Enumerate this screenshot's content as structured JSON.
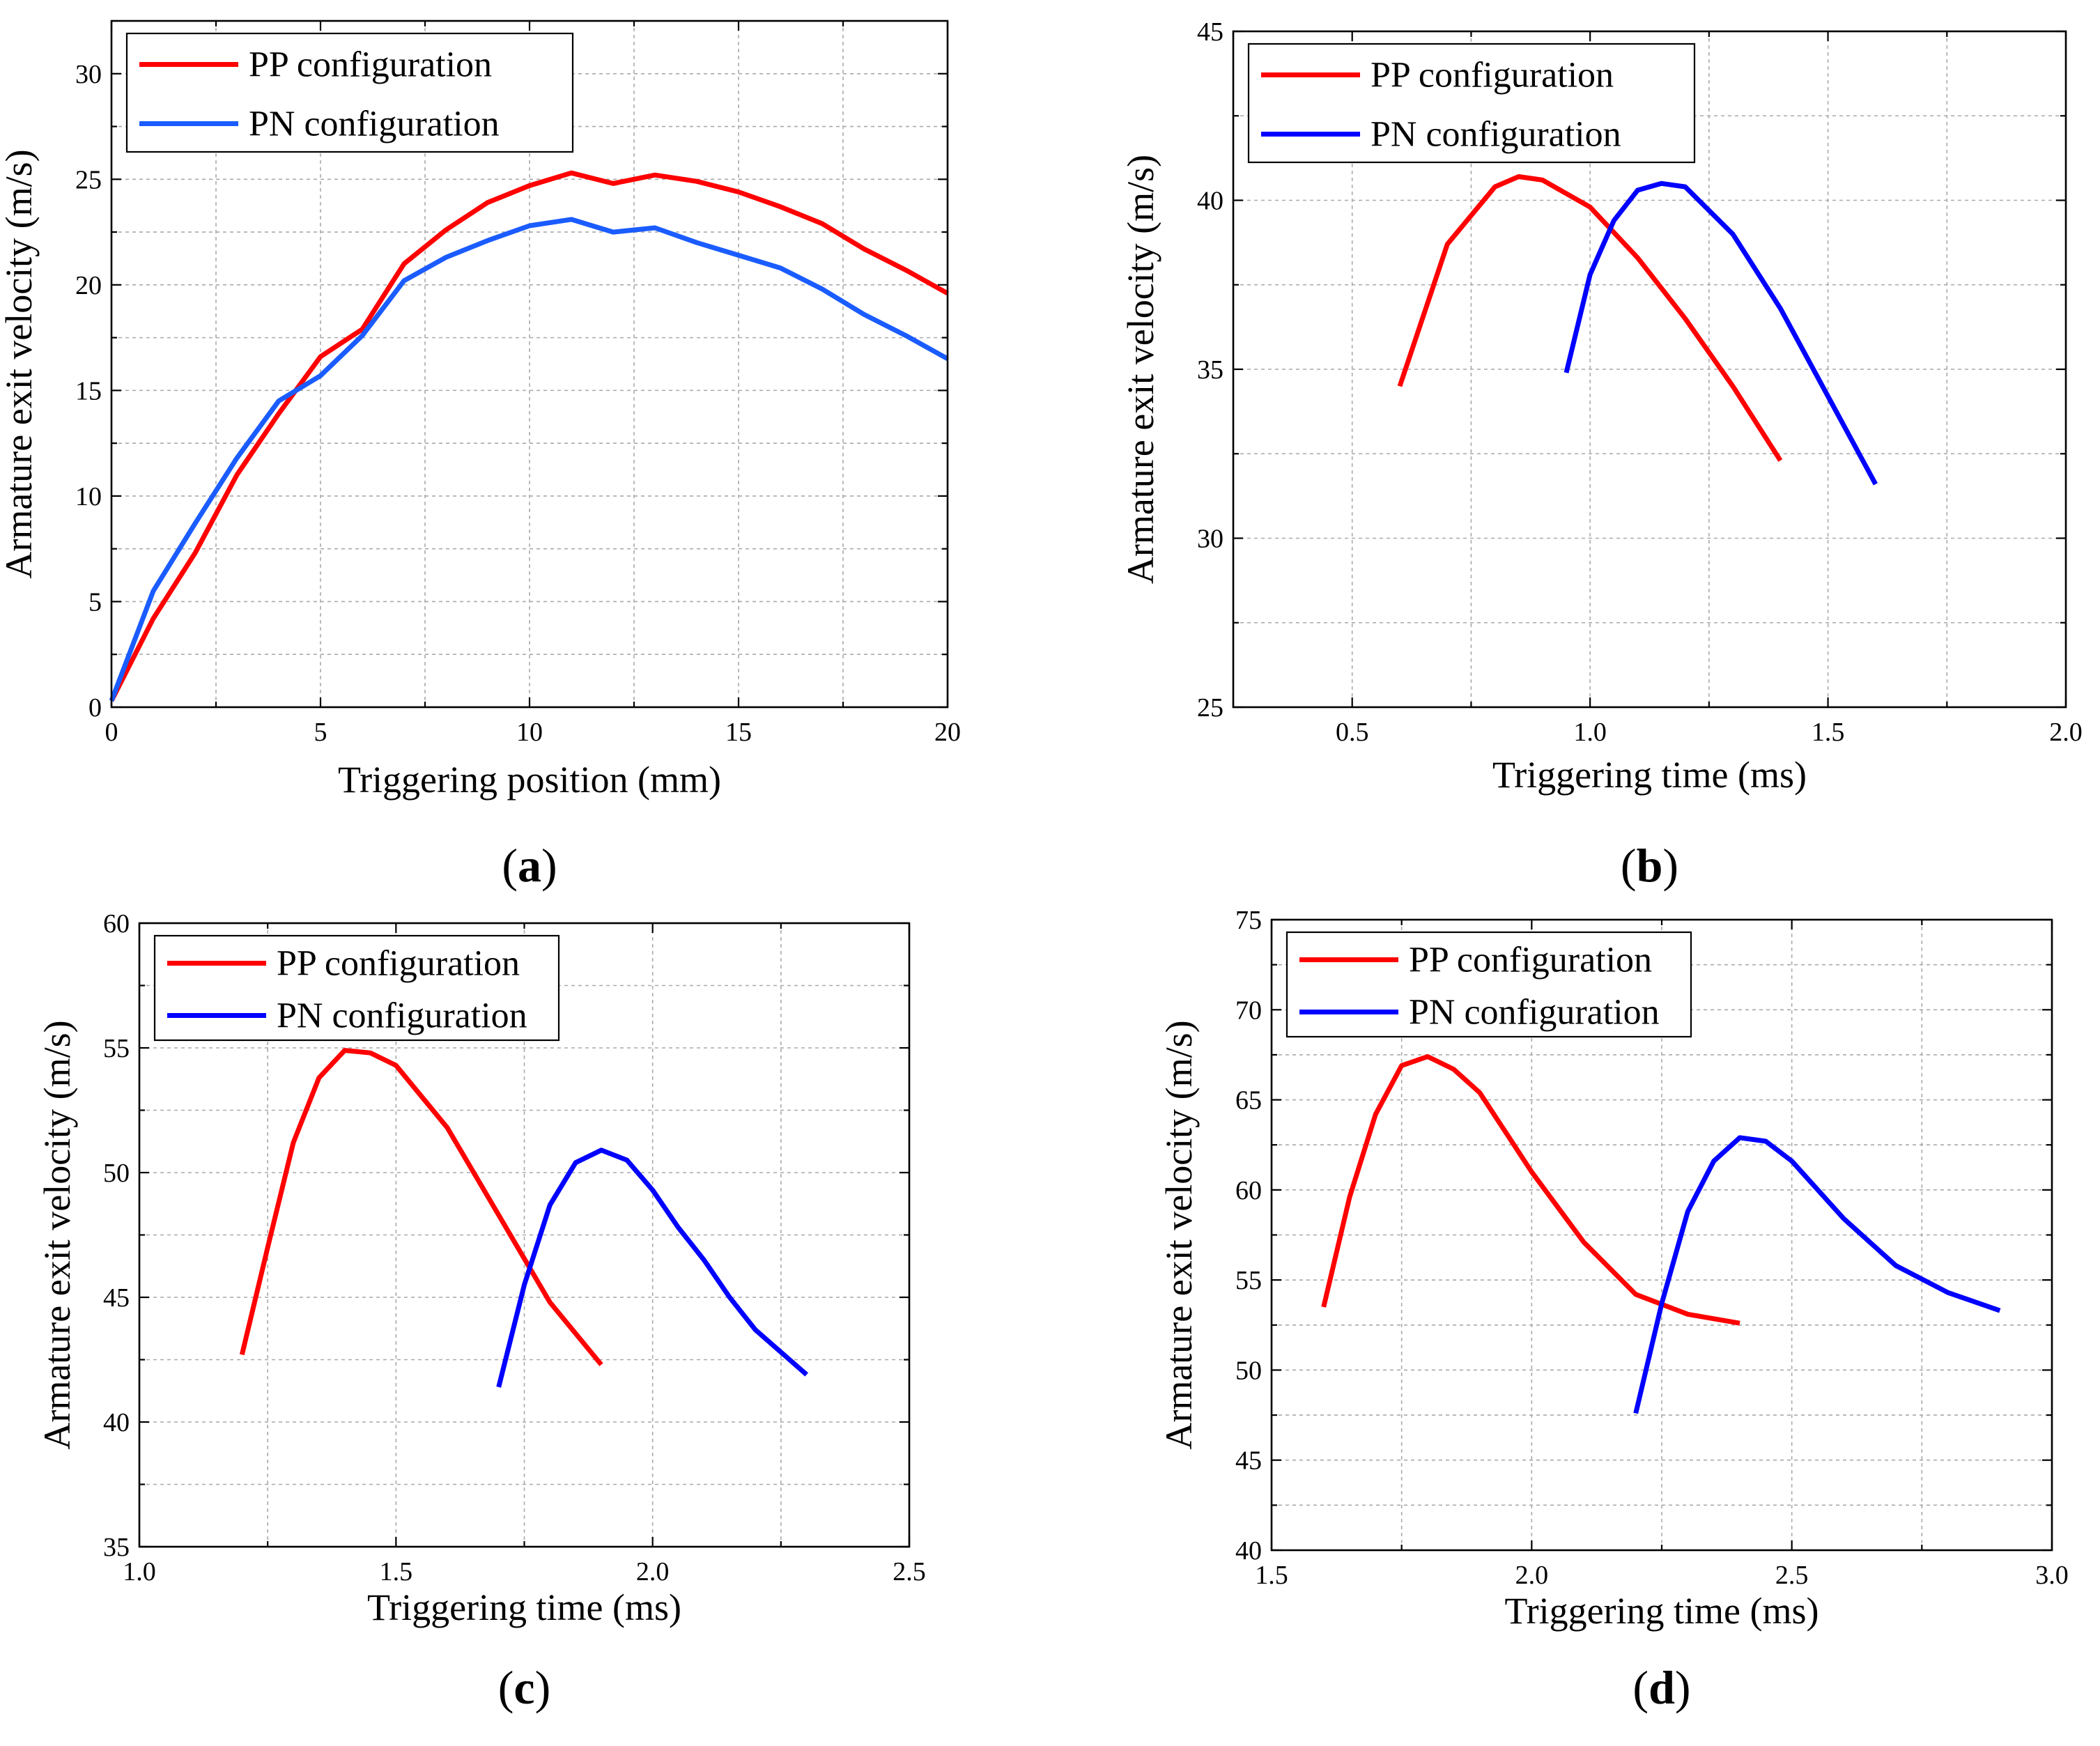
{
  "charts": [
    {
      "panel": "a",
      "type": "line",
      "xlabel": "Triggering position (mm)",
      "ylabel": "Armature exit velocity (m/s)",
      "xlim": [
        0,
        20
      ],
      "ylim": [
        0,
        32.5
      ],
      "xticks": [
        0,
        5,
        10,
        15,
        20
      ],
      "xtick_labels": [
        "0",
        "5",
        "10",
        "15",
        "20"
      ],
      "yticks": [
        0,
        5,
        10,
        15,
        20,
        25,
        30
      ],
      "ytick_labels": [
        "0",
        "5",
        "10",
        "15",
        "20",
        "25",
        "30"
      ],
      "legend_position": "top-left",
      "series": [
        {
          "name": "PP configuration",
          "color": "#ff0000",
          "x": [
            0,
            1,
            2,
            3,
            4,
            5,
            6,
            7,
            8,
            9,
            10,
            11,
            12,
            13,
            14,
            15,
            16,
            17,
            18,
            19,
            20
          ],
          "y": [
            0.3,
            4.2,
            7.3,
            11.0,
            13.9,
            16.6,
            17.9,
            21.0,
            22.6,
            23.9,
            24.7,
            25.3,
            24.8,
            25.2,
            24.9,
            24.4,
            23.7,
            22.9,
            21.7,
            20.7,
            19.6
          ]
        },
        {
          "name": "PN configuration",
          "color": "#1a5cff",
          "x": [
            0,
            1,
            2,
            3,
            4,
            5,
            6,
            7,
            8,
            9,
            10,
            11,
            12,
            13,
            14,
            15,
            16,
            17,
            18,
            19,
            20
          ],
          "y": [
            0.3,
            5.5,
            8.7,
            11.8,
            14.5,
            15.7,
            17.6,
            20.2,
            21.3,
            22.1,
            22.8,
            23.1,
            22.5,
            22.7,
            22.0,
            21.4,
            20.8,
            19.8,
            18.6,
            17.6,
            16.5
          ]
        }
      ]
    },
    {
      "panel": "b",
      "type": "line",
      "xlabel": "Triggering time (ms)",
      "ylabel": "Armature exit velocity (m/s)",
      "xlim": [
        0.25,
        2.0
      ],
      "ylim": [
        25,
        45
      ],
      "xticks": [
        0.5,
        1.0,
        1.5,
        2.0
      ],
      "xtick_labels": [
        "0.5",
        "1.0",
        "1.5",
        "2.0"
      ],
      "yticks": [
        25,
        30,
        35,
        40,
        45
      ],
      "ytick_labels": [
        "25",
        "30",
        "35",
        "40",
        "45"
      ],
      "minor_yticks": [
        27.5,
        32.5,
        37.5,
        42.5
      ],
      "legend_position": "top-left",
      "series": [
        {
          "name": "PP configuration",
          "color": "#ff0000",
          "x": [
            0.6,
            0.7,
            0.8,
            0.85,
            0.9,
            1.0,
            1.1,
            1.2,
            1.3,
            1.4
          ],
          "y": [
            34.5,
            38.7,
            40.4,
            40.7,
            40.6,
            39.8,
            38.3,
            36.5,
            34.5,
            32.3
          ]
        },
        {
          "name": "PN configuration",
          "color": "#0000ff",
          "x": [
            0.95,
            1.0,
            1.05,
            1.1,
            1.15,
            1.2,
            1.3,
            1.4,
            1.5,
            1.6
          ],
          "y": [
            34.9,
            37.8,
            39.4,
            40.3,
            40.5,
            40.4,
            39.0,
            36.8,
            34.2,
            31.6
          ]
        }
      ]
    },
    {
      "panel": "c",
      "type": "line",
      "xlabel": "Triggering time (ms)",
      "ylabel": "Armature exit velocity (m/s)",
      "xlim": [
        1.0,
        2.5
      ],
      "ylim": [
        35,
        60
      ],
      "xticks": [
        1.0,
        1.5,
        2.0,
        2.5
      ],
      "xtick_labels": [
        "1.0",
        "1.5",
        "2.0",
        "2.5"
      ],
      "yticks": [
        35,
        40,
        45,
        50,
        55,
        60
      ],
      "ytick_labels": [
        "35",
        "40",
        "45",
        "50",
        "55",
        "60"
      ],
      "legend_position": "top-left",
      "series": [
        {
          "name": "PP configuration",
          "color": "#ff0000",
          "x": [
            1.2,
            1.25,
            1.3,
            1.35,
            1.4,
            1.45,
            1.5,
            1.6,
            1.7,
            1.8,
            1.9
          ],
          "y": [
            42.7,
            47.0,
            51.2,
            53.8,
            54.9,
            54.8,
            54.3,
            51.8,
            48.3,
            44.8,
            42.3
          ]
        },
        {
          "name": "PN configuration",
          "color": "#0000ff",
          "x": [
            1.7,
            1.75,
            1.8,
            1.85,
            1.9,
            1.95,
            2.0,
            2.05,
            2.1,
            2.15,
            2.2,
            2.3
          ],
          "y": [
            41.4,
            45.5,
            48.7,
            50.4,
            50.9,
            50.5,
            49.3,
            47.8,
            46.5,
            45.0,
            43.7,
            41.9
          ]
        }
      ]
    },
    {
      "panel": "d",
      "type": "line",
      "xlabel": "Triggering time (ms)",
      "ylabel": "Armature exit velocity (m/s)",
      "xlim": [
        1.5,
        3.0
      ],
      "ylim": [
        40,
        75
      ],
      "xticks": [
        1.5,
        2.0,
        2.5,
        3.0
      ],
      "xtick_labels": [
        "1.5",
        "2.0",
        "2.5",
        "3.0"
      ],
      "yticks": [
        40,
        45,
        50,
        55,
        60,
        65,
        70,
        75
      ],
      "ytick_labels": [
        "40",
        "45",
        "50",
        "55",
        "60",
        "65",
        "70",
        "75"
      ],
      "legend_position": "top-left",
      "series": [
        {
          "name": "PP configuration",
          "color": "#ff0000",
          "x": [
            1.6,
            1.65,
            1.7,
            1.75,
            1.8,
            1.85,
            1.9,
            2.0,
            2.1,
            2.2,
            2.3,
            2.4
          ],
          "y": [
            53.5,
            59.6,
            64.2,
            66.9,
            67.4,
            66.7,
            65.4,
            61.0,
            57.1,
            54.2,
            53.1,
            52.6
          ]
        },
        {
          "name": "PN configuration",
          "color": "#0000ff",
          "x": [
            2.2,
            2.25,
            2.3,
            2.35,
            2.4,
            2.45,
            2.5,
            2.6,
            2.7,
            2.8,
            2.9
          ],
          "y": [
            47.6,
            53.7,
            58.8,
            61.6,
            62.9,
            62.7,
            61.6,
            58.4,
            55.8,
            54.3,
            53.3
          ]
        }
      ]
    }
  ]
}
